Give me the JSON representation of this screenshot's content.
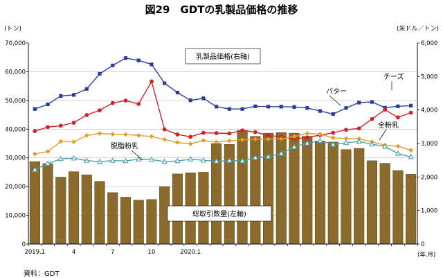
{
  "header": {
    "title": "図29　GDTの乳製品価格の推移",
    "unit_left": "(トン)",
    "unit_right": "(米ドル／トン)",
    "source": "資料：GDT"
  },
  "chart_data": {
    "type": "bar+line",
    "x_tick_labels": [
      "2019.1",
      "4",
      "7",
      "10",
      "2020.1"
    ],
    "x_unit": "(年.月)",
    "ylim_left": [
      0,
      70000
    ],
    "ylim_right": [
      0,
      6000
    ],
    "y_ticks_left": [
      "0",
      "10,000",
      "20,000",
      "30,000",
      "40,000",
      "50,000",
      "60,000",
      "70,000"
    ],
    "y_ticks_right": [
      "0",
      "1,000",
      "2,000",
      "3,000",
      "4,000",
      "5,000",
      "6,000"
    ],
    "legend_bar": "総取引数量(左軸)",
    "legend_lines": "乳製品価格(右軸)",
    "bars": {
      "name": "総取引数量(左軸)",
      "values": [
        28700,
        28000,
        23300,
        25200,
        24100,
        21800,
        17900,
        16300,
        15300,
        15500,
        20000,
        24400,
        24800,
        25000,
        35000,
        34700,
        39600,
        37500,
        38600,
        38800,
        38600,
        37500,
        35900,
        35500,
        32900,
        33300,
        29000,
        28100,
        25600,
        24300
      ]
    },
    "series": [
      {
        "name": "バター",
        "color": "#2B3C9E",
        "marker": "square",
        "values": [
          4030,
          4170,
          4420,
          4450,
          4630,
          5080,
          5330,
          5550,
          5480,
          5360,
          4800,
          4520,
          4290,
          4350,
          4100,
          4030,
          4030,
          4110,
          4100,
          4100,
          4090,
          4060,
          3970,
          3880,
          4060,
          4220,
          4240,
          4070,
          4110,
          4130
        ]
      },
      {
        "name": "チーズ",
        "color": "#D22028",
        "marker": "circle",
        "values": [
          3370,
          3490,
          3530,
          3620,
          3850,
          3990,
          4210,
          4280,
          4180,
          4850,
          3420,
          3270,
          3200,
          3320,
          3310,
          3300,
          3390,
          3340,
          3240,
          3200,
          3140,
          3180,
          3250,
          3320,
          3410,
          3450,
          3730,
          4010,
          3780,
          3920
        ]
      },
      {
        "name": "全粉乳",
        "color": "#E0A02A",
        "marker": "diamond",
        "values": [
          2690,
          2760,
          3060,
          3050,
          3240,
          3300,
          3280,
          3270,
          3240,
          3210,
          3120,
          3030,
          2990,
          3090,
          3040,
          3080,
          3110,
          3130,
          3130,
          3140,
          3210,
          3300,
          3280,
          3170,
          3150,
          3140,
          3050,
          2950,
          2920,
          2800
        ]
      },
      {
        "name": "脱脂粉乳",
        "color": "#4BA0B0",
        "marker": "triangle",
        "values": [
          2220,
          2400,
          2540,
          2560,
          2490,
          2460,
          2490,
          2480,
          2530,
          2520,
          2460,
          2480,
          2530,
          2500,
          2470,
          2490,
          2480,
          2580,
          2610,
          2700,
          2900,
          3010,
          3080,
          2970,
          3020,
          3060,
          2980,
          2910,
          2700,
          2600
        ]
      }
    ],
    "grid": true
  }
}
